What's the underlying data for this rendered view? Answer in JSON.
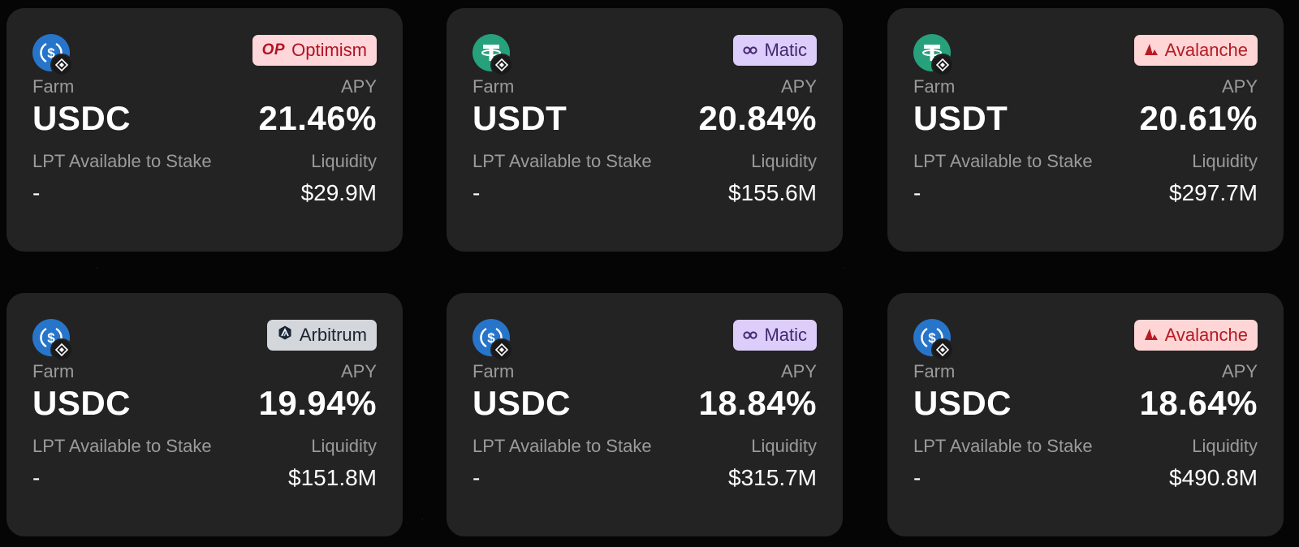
{
  "cards": [
    {
      "token": "USDC",
      "token_icon": "usdc-icon",
      "network": "Optimism",
      "network_icon": "optimism-icon",
      "farm_label": "Farm",
      "apy_label": "APY",
      "apy": "21.46%",
      "lpt_label": "LPT Available to Stake",
      "lpt_value": "-",
      "liquidity_label": "Liquidity",
      "liquidity": "$29.9M",
      "badge_logo": "OP"
    },
    {
      "token": "USDT",
      "token_icon": "usdt-icon",
      "network": "Matic",
      "network_icon": "polygon-icon",
      "farm_label": "Farm",
      "apy_label": "APY",
      "apy": "20.84%",
      "lpt_label": "LPT Available to Stake",
      "lpt_value": "-",
      "liquidity_label": "Liquidity",
      "liquidity": "$155.6M"
    },
    {
      "token": "USDT",
      "token_icon": "usdt-icon",
      "network": "Avalanche",
      "network_icon": "avalanche-icon",
      "farm_label": "Farm",
      "apy_label": "APY",
      "apy": "20.61%",
      "lpt_label": "LPT Available to Stake",
      "lpt_value": "-",
      "liquidity_label": "Liquidity",
      "liquidity": "$297.7M"
    },
    {
      "token": "USDC",
      "token_icon": "usdc-icon",
      "network": "Arbitrum",
      "network_icon": "arbitrum-icon",
      "farm_label": "Farm",
      "apy_label": "APY",
      "apy": "19.94%",
      "lpt_label": "LPT Available to Stake",
      "lpt_value": "-",
      "liquidity_label": "Liquidity",
      "liquidity": "$151.8M"
    },
    {
      "token": "USDC",
      "token_icon": "usdc-icon",
      "network": "Matic",
      "network_icon": "polygon-icon",
      "farm_label": "Farm",
      "apy_label": "APY",
      "apy": "18.84%",
      "lpt_label": "LPT Available to Stake",
      "lpt_value": "-",
      "liquidity_label": "Liquidity",
      "liquidity": "$315.7M"
    },
    {
      "token": "USDC",
      "token_icon": "usdc-icon",
      "network": "Avalanche",
      "network_icon": "avalanche-icon",
      "farm_label": "Farm",
      "apy_label": "APY",
      "apy": "18.64%",
      "lpt_label": "LPT Available to Stake",
      "lpt_value": "-",
      "liquidity_label": "Liquidity",
      "liquidity": "$490.8M"
    }
  ],
  "colors": {
    "background": "#050505",
    "card": "#232323",
    "label": "#9b9b9b",
    "usdc": "#2775ca",
    "usdt": "#26a17b",
    "optimism_bg": "#ffd6d9",
    "optimism_fg": "#b01325",
    "matic_bg": "#dccdfb",
    "matic_fg": "#44286e",
    "avalanche_bg": "#ffd5d6",
    "avalanche_fg": "#b51b22",
    "arbitrum_bg": "#d3d6da",
    "arbitrum_fg": "#1b2431"
  }
}
